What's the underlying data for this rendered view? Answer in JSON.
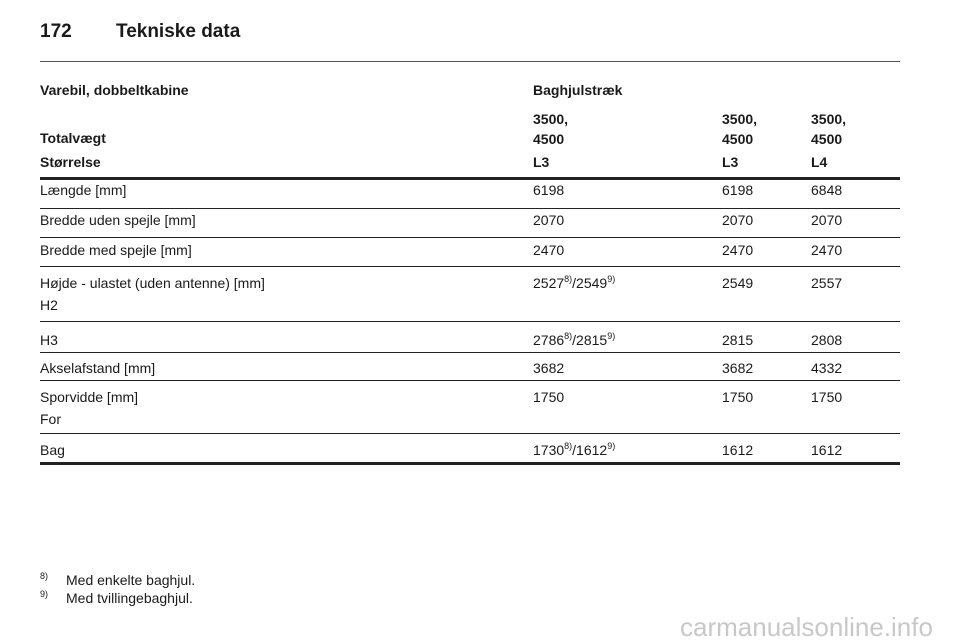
{
  "header": {
    "page_number": "172",
    "title": "Tekniske data"
  },
  "table": {
    "heading": {
      "model": "Varebil, dobbeltkabine",
      "drive": "Baghjulstræk"
    },
    "weight_row": {
      "label": "Totalvægt",
      "values": [
        "3500, 4500",
        "3500, 4500",
        "3500, 4500"
      ]
    },
    "size_row": {
      "label": "Størrelse",
      "values": [
        "L3",
        "L3",
        "L4"
      ]
    },
    "rows": [
      {
        "cells": [
          "Længde [mm]",
          "6198",
          "6198",
          "6848"
        ]
      },
      {
        "cells": [
          "Bredde uden spejle [mm]",
          "2070",
          "2070",
          "2070"
        ]
      },
      {
        "cells": [
          "Bredde med spejle [mm]",
          "2470",
          "2470",
          "2470"
        ]
      },
      {
        "cells": [
          "Højde - ulastet (uden antenne) [mm]",
          [
            "2527",
            "8)",
            "/2549",
            "9)"
          ],
          "2549",
          "2557"
        ],
        "sublabel": "H2"
      },
      {
        "cells": [
          "H3",
          [
            "2786",
            "8)",
            "/2815",
            "9)"
          ],
          "2815",
          "2808"
        ]
      },
      {
        "cells": [
          "Akselafstand [mm]",
          "3682",
          "3682",
          "4332"
        ]
      },
      {
        "cells": [
          "Sporvidde [mm]",
          "1750",
          "1750",
          "1750"
        ],
        "sublabel": "For"
      },
      {
        "cells": [
          "Bag",
          [
            "1730",
            "8)",
            "/1612",
            "9)"
          ],
          "1612",
          "1612"
        ]
      }
    ]
  },
  "footnotes": [
    {
      "mark": "8)",
      "text": "Med enkelte baghjul."
    },
    {
      "mark": "9)",
      "text": "Med tvillingebaghjul."
    }
  ],
  "watermark": "carmanualsonline.info"
}
